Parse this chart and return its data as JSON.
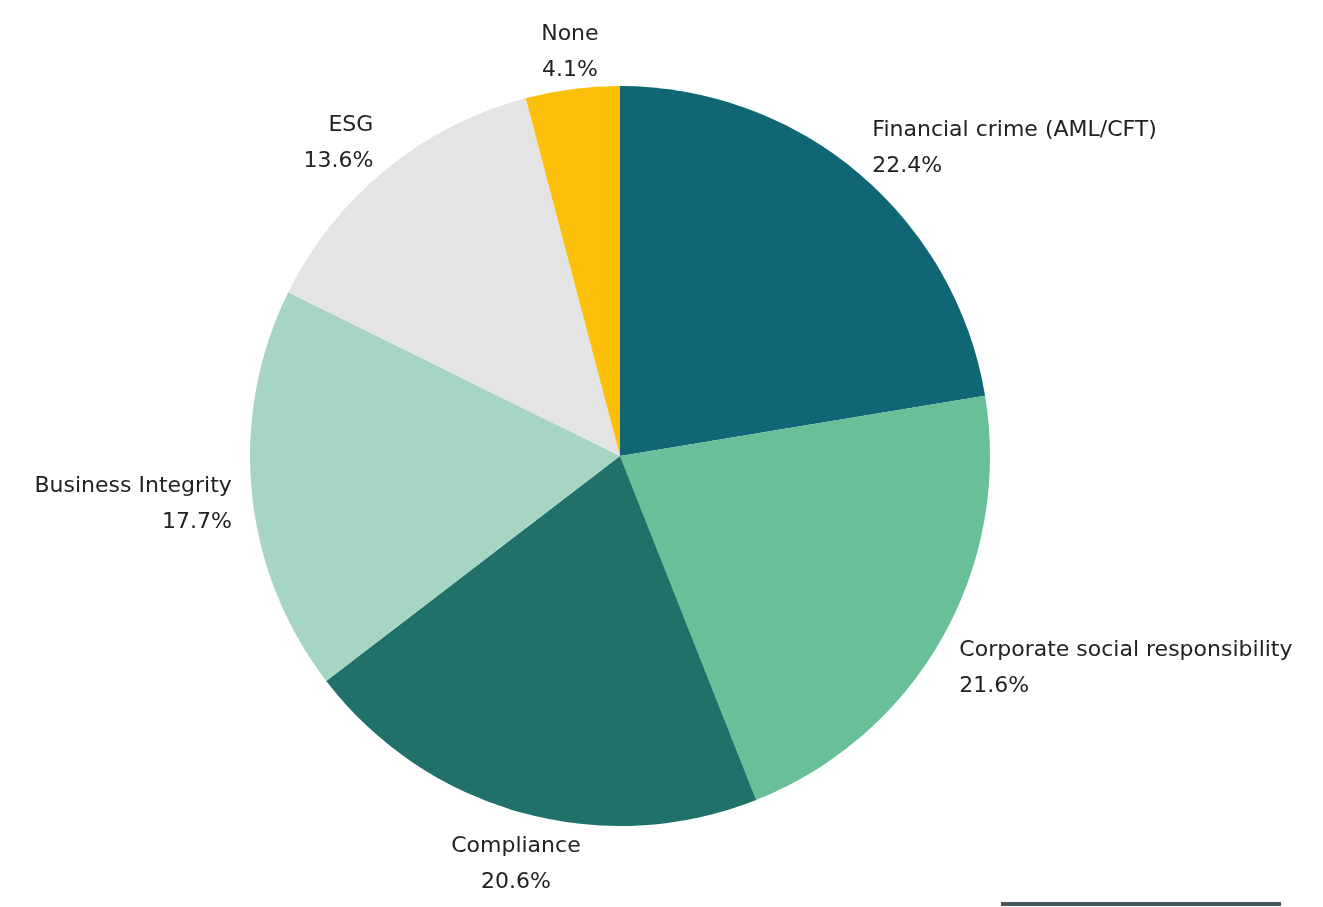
{
  "chart_data": {
    "type": "pie",
    "categories": [
      "Financial crime (AML/CFT)",
      "Corporate social responsibility",
      "Compliance",
      "Business Integrity",
      "ESG",
      "None"
    ],
    "values": [
      22.4,
      21.6,
      20.6,
      17.7,
      13.6,
      4.1
    ],
    "colors": [
      "#106674",
      "#68bf98",
      "#21716b",
      "#a6d6c3",
      "#e3e4e3",
      "#fcc00b"
    ],
    "value_labels": [
      "22.4%",
      "21.6%",
      "20.6%",
      "17.7%",
      "13.6%",
      "4.1%"
    ]
  }
}
